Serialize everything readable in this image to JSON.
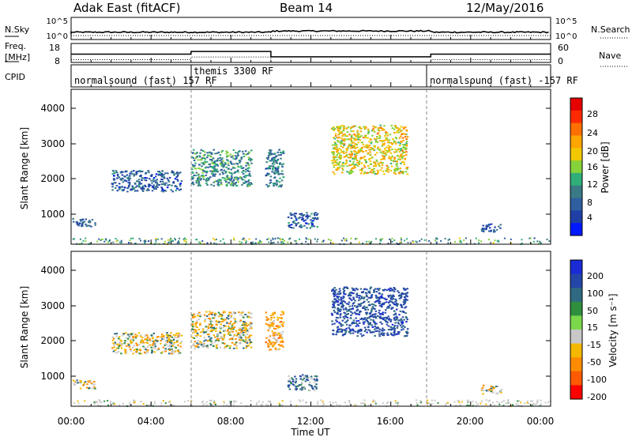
{
  "header": {
    "station": "Adak East (fitACF)",
    "beam": "Beam 14",
    "date": "12/May/2016"
  },
  "top_panels": {
    "nsky_label": "N.Sky",
    "nsearch_label": "N.Search",
    "nsky_ticks": [
      "10^5",
      "10^0"
    ],
    "nsearch_ticks": [
      "10^5",
      "10^0"
    ],
    "freq_label_1": "Freq.",
    "freq_label_2": "[MHz]",
    "freq_ticks": [
      "18",
      "8"
    ],
    "nave_label": "Nave",
    "nave_ticks": [
      "60",
      "0"
    ],
    "cpid_label": "CPID",
    "cpid_segments": [
      {
        "label": "normalsound (fast) 157 RF",
        "start": 0,
        "end": 6
      },
      {
        "label": "themis 3300 RF",
        "start": 6,
        "end": 18
      },
      {
        "label": "normalsound (fast) -157 RF",
        "start": 18,
        "end": 24
      }
    ]
  },
  "power_panel": {
    "ylabel": "Slant Range [km]",
    "yticks": [
      "4000",
      "3000",
      "2000",
      "1000"
    ],
    "colorbar_label": "Power [dB]",
    "colorbar_ticks": [
      "28",
      "24",
      "20",
      "16",
      "12",
      "8",
      "4"
    ],
    "colors": [
      "#0019ff",
      "#1f3fa6",
      "#2f5fa0",
      "#3a7a86",
      "#2fae7a",
      "#86d23a",
      "#f2c800",
      "#ffa500",
      "#ff6f00",
      "#ff2a00",
      "#e60000"
    ]
  },
  "velocity_panel": {
    "ylabel": "Slant Range [km]",
    "yticks": [
      "4000",
      "3000",
      "2000",
      "1000"
    ],
    "colorbar_label": "Velocity [m s⁻¹]",
    "colorbar_ticks": [
      "200",
      "100",
      "50",
      "15",
      "-15",
      "-50",
      "-100",
      "-200"
    ],
    "colors": [
      "#1a2bd6",
      "#2446a8",
      "#2f6a82",
      "#2f8f3f",
      "#7ad84a",
      "#c8c8c8",
      "#f5b800",
      "#ff8c00",
      "#ff5a00",
      "#ff0000"
    ]
  },
  "xaxis": {
    "ticks": [
      "00:00",
      "04:00",
      "08:00",
      "12:00",
      "16:00",
      "20:00",
      "00:00"
    ],
    "label": "Time UT"
  },
  "chart_data": {
    "type": "heatmap",
    "x_range_hours": [
      0,
      24
    ],
    "y_range_km": [
      180,
      4600
    ],
    "freq_segments_mhz": [
      {
        "start": 0,
        "end": 6,
        "value": 13
      },
      {
        "start": 6,
        "end": 10,
        "value": 15
      },
      {
        "start": 10,
        "end": 18,
        "value": 11
      },
      {
        "start": 18,
        "end": 24,
        "value": 13
      }
    ],
    "scatter_regions": [
      {
        "t0": 0.0,
        "t1": 1.2,
        "r0": 700,
        "r1": 950,
        "power": 6,
        "velocity": -15
      },
      {
        "t0": 2.0,
        "t1": 5.5,
        "r0": 1700,
        "r1": 2300,
        "power": 6,
        "velocity": -15
      },
      {
        "t0": 6.0,
        "t1": 9.0,
        "r0": 1850,
        "r1": 2900,
        "power": 10,
        "velocity": -15
      },
      {
        "t0": 9.7,
        "t1": 10.6,
        "r0": 1800,
        "r1": 2900,
        "power": 8,
        "velocity": -50
      },
      {
        "t0": 10.8,
        "t1": 12.3,
        "r0": 650,
        "r1": 1100,
        "power": 6,
        "velocity": 50
      },
      {
        "t0": 13.0,
        "t1": 16.8,
        "r0": 2200,
        "r1": 3600,
        "power": 18,
        "velocity": 100
      },
      {
        "t0": 20.5,
        "t1": 21.5,
        "r0": 550,
        "r1": 800,
        "power": 6,
        "velocity": -15
      }
    ]
  }
}
